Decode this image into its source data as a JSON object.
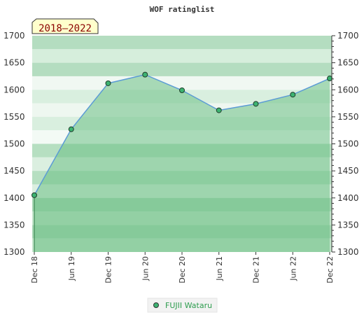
{
  "chart_data": {
    "type": "area",
    "title": "WOF ratinglist",
    "period_label": "2018–2022",
    "categories": [
      "Dec 18",
      "Jun 19",
      "Dec 19",
      "Jun 20",
      "Dec 20",
      "Jun 21",
      "Dec 21",
      "Jun 22",
      "Dec 22"
    ],
    "series": [
      {
        "name": "FUJII Wataru",
        "values": [
          1405,
          1527,
          1612,
          1628,
          1599,
          1562,
          1574,
          1591,
          1621
        ]
      }
    ],
    "ylim": [
      1300,
      1700
    ],
    "yticks": [
      1300,
      1350,
      1400,
      1450,
      1500,
      1550,
      1600,
      1650,
      1700
    ],
    "xlabel": "",
    "ylabel": "",
    "grid": "bands",
    "legend_position": "bottom-center",
    "colors": {
      "line": "#5b9bd5",
      "marker": "#3cb371",
      "area_fill": "#6cbf85",
      "band_light": "#e8f5ec",
      "band_mid": "#c7e6cf",
      "band_dark": "#9fd3ad",
      "period_bg": "#ffffcc"
    }
  }
}
